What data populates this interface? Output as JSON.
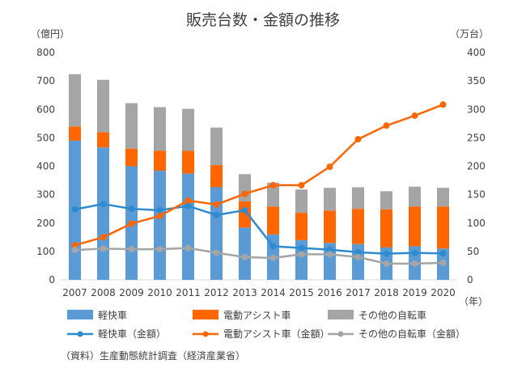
{
  "chart_data": {
    "type": "bar",
    "title": "販売台数・金額の推移",
    "ylabel_left": "（億円）",
    "ylabel_right": "（万台）",
    "xlabel": "（年）",
    "categories": [
      "2007",
      "2008",
      "2009",
      "2010",
      "2011",
      "2012",
      "2013",
      "2014",
      "2015",
      "2016",
      "2017",
      "2018",
      "2019",
      "2020"
    ],
    "ylim_left": [
      0,
      800
    ],
    "ylim_right": [
      0,
      400
    ],
    "yticks_left": [
      "0",
      "100",
      "200",
      "300",
      "400",
      "500",
      "600",
      "700",
      "800"
    ],
    "yticks_right": [
      "0",
      "50",
      "100",
      "150",
      "200",
      "250",
      "300",
      "350",
      "400"
    ],
    "grid": false,
    "legend_position": "bottom",
    "bar_series": [
      {
        "name": "軽快車",
        "axis": "right",
        "color": "#5b9bd5",
        "values": [
          245,
          233,
          200,
          192,
          187,
          163,
          92,
          80,
          70,
          65,
          63,
          57,
          59,
          55
        ]
      },
      {
        "name": "電動アシスト車",
        "axis": "right",
        "color": "#ff6600",
        "values": [
          25,
          27,
          31,
          35,
          40,
          39,
          46,
          49,
          48,
          57,
          62,
          67,
          70,
          74
        ]
      },
      {
        "name": "その他の自転車",
        "axis": "right",
        "color": "#a5a5a5",
        "values": [
          92,
          92,
          80,
          77,
          74,
          66,
          48,
          42,
          41,
          40,
          38,
          32,
          35,
          33
        ]
      }
    ],
    "line_series": [
      {
        "name": "軽快車（金額）",
        "axis": "left",
        "color": "#2e8bd0",
        "values": [
          248,
          267,
          250,
          245,
          260,
          228,
          245,
          118,
          112,
          106,
          97,
          92,
          95,
          93
        ]
      },
      {
        "name": "電動アシスト車（金額）",
        "axis": "left",
        "color": "#ff6600",
        "values": [
          122,
          150,
          198,
          225,
          279,
          265,
          303,
          333,
          333,
          398,
          495,
          543,
          578,
          617
        ]
      },
      {
        "name": "その他の自転車（金額）",
        "axis": "left",
        "color": "#a5a5a5",
        "values": [
          105,
          110,
          108,
          108,
          112,
          95,
          80,
          77,
          90,
          90,
          80,
          57,
          57,
          60
        ]
      }
    ]
  },
  "source_note": "（資料）生産動態統計調査（経済産業省）"
}
